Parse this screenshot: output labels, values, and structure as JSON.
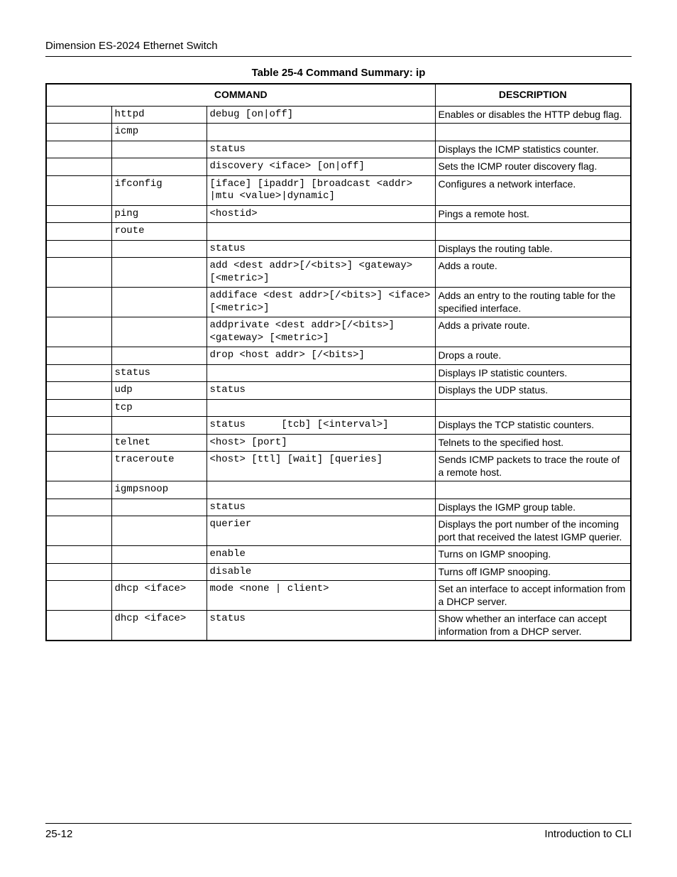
{
  "header": {
    "title": "Dimension ES-2024 Ethernet Switch"
  },
  "table": {
    "caption": "Table 25-4 Command Summary: ip",
    "headers": {
      "command": "COMMAND",
      "description": "DESCRIPTION"
    },
    "rows": [
      {
        "c2": "httpd",
        "c3": "debug [on|off]",
        "desc": "Enables or disables the HTTP debug flag."
      },
      {
        "c2": "icmp",
        "c3": "",
        "desc": ""
      },
      {
        "c2": "",
        "c3": "status",
        "desc": "Displays the ICMP statistics counter."
      },
      {
        "c2": "",
        "c3": "discovery <iface> [on|off]",
        "desc": "Sets the ICMP router discovery flag."
      },
      {
        "c2": "ifconfig",
        "c3": "[iface] [ipaddr] [broadcast <addr> |mtu <value>|dynamic]",
        "desc": "Configures a network interface."
      },
      {
        "c2": "ping",
        "c3": "<hostid>",
        "desc": "Pings a remote host."
      },
      {
        "c2": "route",
        "c3": "",
        "desc": ""
      },
      {
        "c2": "",
        "c3": "status",
        "desc": "Displays the routing table."
      },
      {
        "c2": "",
        "c3": "add <dest addr>[/<bits>] <gateway> [<metric>]",
        "desc": "Adds a route."
      },
      {
        "c2": "",
        "c3": "addiface <dest addr>[/<bits>] <iface> [<metric>]",
        "desc": "Adds an entry to the routing table for the specified interface."
      },
      {
        "c2": "",
        "c3": "addprivate <dest addr>[/<bits>] <gateway> [<metric>]",
        "desc": "Adds a private route."
      },
      {
        "c2": "",
        "c3": "drop <host addr> [/<bits>]",
        "desc": "Drops a route."
      },
      {
        "c2": "status",
        "c3": "",
        "desc": "Displays IP statistic counters."
      },
      {
        "c2": "udp",
        "c3": "status",
        "desc": "Displays the UDP status."
      },
      {
        "c2": "tcp",
        "c3": "",
        "desc": ""
      },
      {
        "c2": "",
        "c3": "status      [tcb] [<interval>]",
        "desc": "Displays the TCP statistic counters."
      },
      {
        "c2": "telnet",
        "c3": "<host> [port]",
        "desc": "Telnets to the specified host."
      },
      {
        "c2": "traceroute",
        "c3": "<host> [ttl] [wait] [queries]",
        "desc": "Sends ICMP packets to trace the route of a remote host."
      },
      {
        "c2": "igmpsnoop",
        "c3": "",
        "desc": ""
      },
      {
        "c2": "",
        "c3": "status",
        "desc": "Displays the IGMP group table."
      },
      {
        "c2": "",
        "c3": "querier",
        "desc": "Displays the port number of the incoming port that received the latest IGMP querier."
      },
      {
        "c2": "",
        "c3": "enable",
        "desc": "Turns on IGMP snooping."
      },
      {
        "c2": "",
        "c3": "disable",
        "desc": "Turns off IGMP snooping."
      },
      {
        "c2": "dhcp <iface>",
        "c3": "mode <none | client>",
        "desc": "Set an interface to accept information from a DHCP server."
      },
      {
        "c2": "dhcp <iface>",
        "c3": "status",
        "desc": "Show whether an interface can accept information from a DHCP server."
      }
    ]
  },
  "footer": {
    "left": "25-12",
    "right": "Introduction to CLI"
  }
}
